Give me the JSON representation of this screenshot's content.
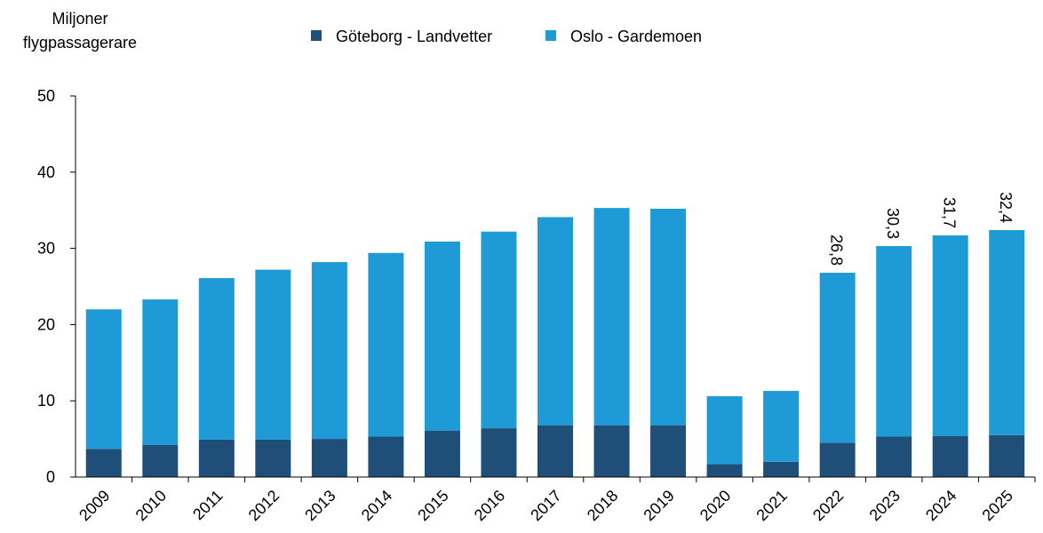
{
  "chart_data": {
    "type": "stacked_bar",
    "y_axis_label": [
      "Miljoner",
      "flygpassagerare"
    ],
    "categories": [
      "2009",
      "2010",
      "2011",
      "2012",
      "2013",
      "2014",
      "2015",
      "2016",
      "2017",
      "2018",
      "2019",
      "2020",
      "2021",
      "2022",
      "2023",
      "2024",
      "2025"
    ],
    "series": [
      {
        "name": "Göteborg - Landvetter",
        "color": "#1f4e79",
        "values": [
          3.7,
          4.2,
          4.9,
          4.9,
          5.0,
          5.3,
          6.1,
          6.4,
          6.8,
          6.8,
          6.8,
          1.7,
          2.0,
          4.5,
          5.3,
          5.4,
          5.5
        ]
      },
      {
        "name": "Oslo - Gardemoen",
        "color": "#1e9bd7",
        "values": [
          18.3,
          19.1,
          21.2,
          22.3,
          23.2,
          24.1,
          24.8,
          25.8,
          27.3,
          28.5,
          28.4,
          8.9,
          9.3,
          22.3,
          25.0,
          26.3,
          26.9
        ]
      }
    ],
    "total_labels": [
      null,
      null,
      null,
      null,
      null,
      null,
      null,
      null,
      null,
      null,
      null,
      null,
      null,
      "26,8",
      "30,3",
      "31,7",
      "32,4"
    ],
    "ylim": [
      0,
      50
    ],
    "yticks": [
      0,
      10,
      20,
      30,
      40,
      50
    ],
    "grid": false,
    "legend": "top"
  }
}
